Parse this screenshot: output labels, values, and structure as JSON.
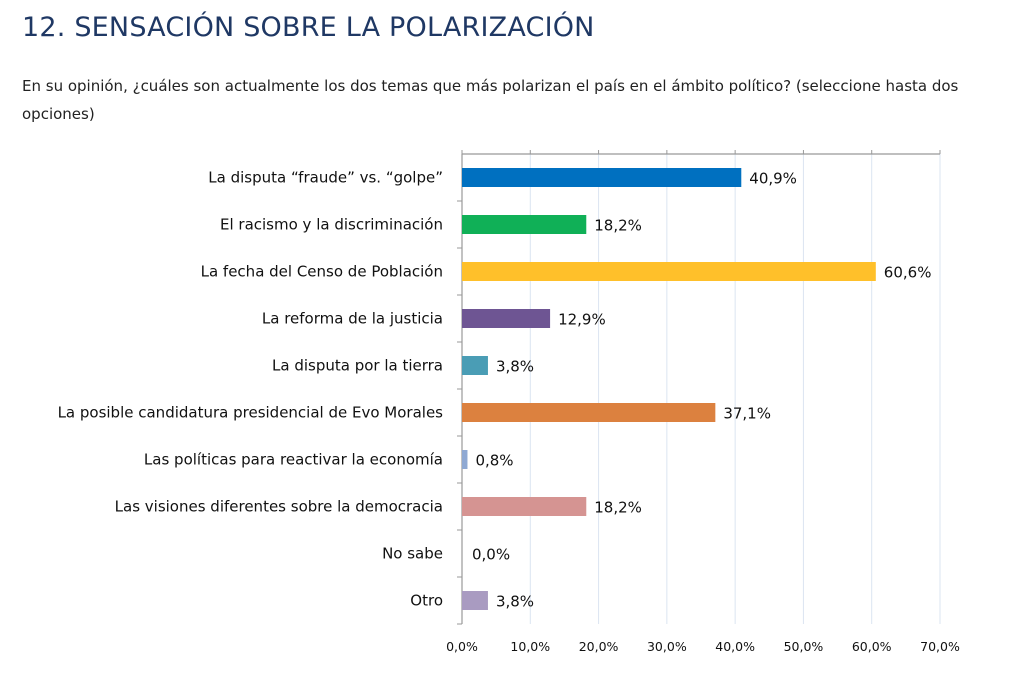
{
  "header": {
    "title": "12. SENSACIÓN SOBRE LA POLARIZACIÓN",
    "question": "En su opinión, ¿cuáles son actualmente los dos temas que más polarizan el país en el ámbito político? (seleccione hasta dos opciones)"
  },
  "chart_data": {
    "type": "bar",
    "orientation": "horizontal",
    "title": "",
    "xlabel": "",
    "ylabel": "",
    "xlim": [
      0,
      70
    ],
    "grid": true,
    "categories": [
      "La disputa “fraude” vs. “golpe”",
      "El racismo y la discriminación",
      "La fecha del Censo de Población",
      "La reforma de la justicia",
      "La disputa por la tierra",
      "La posible candidatura presidencial de Evo Morales",
      "Las políticas para reactivar la economía",
      "Las visiones diferentes sobre la democracia",
      "No sabe",
      "Otro"
    ],
    "values": [
      40.9,
      18.2,
      60.6,
      12.9,
      3.8,
      37.1,
      0.8,
      18.2,
      0.0,
      3.8
    ],
    "data_labels": [
      "40,9%",
      "18,2%",
      "60,6%",
      "12,9%",
      "3,8%",
      "37,1%",
      "0,8%",
      "18,2%",
      "0,0%",
      "3,8%"
    ],
    "colors": [
      "#0070c0",
      "#10b057",
      "#ffc02a",
      "#6e5593",
      "#4a9db5",
      "#dc813f",
      "#8fa9d3",
      "#d59492",
      "#999999",
      "#a99bc1"
    ],
    "x_ticks": [
      0,
      10,
      20,
      30,
      40,
      50,
      60,
      70
    ],
    "x_tick_labels": [
      "0,0%",
      "10,0%",
      "20,0%",
      "30,0%",
      "40,0%",
      "50,0%",
      "60,0%",
      "70,0%"
    ]
  }
}
